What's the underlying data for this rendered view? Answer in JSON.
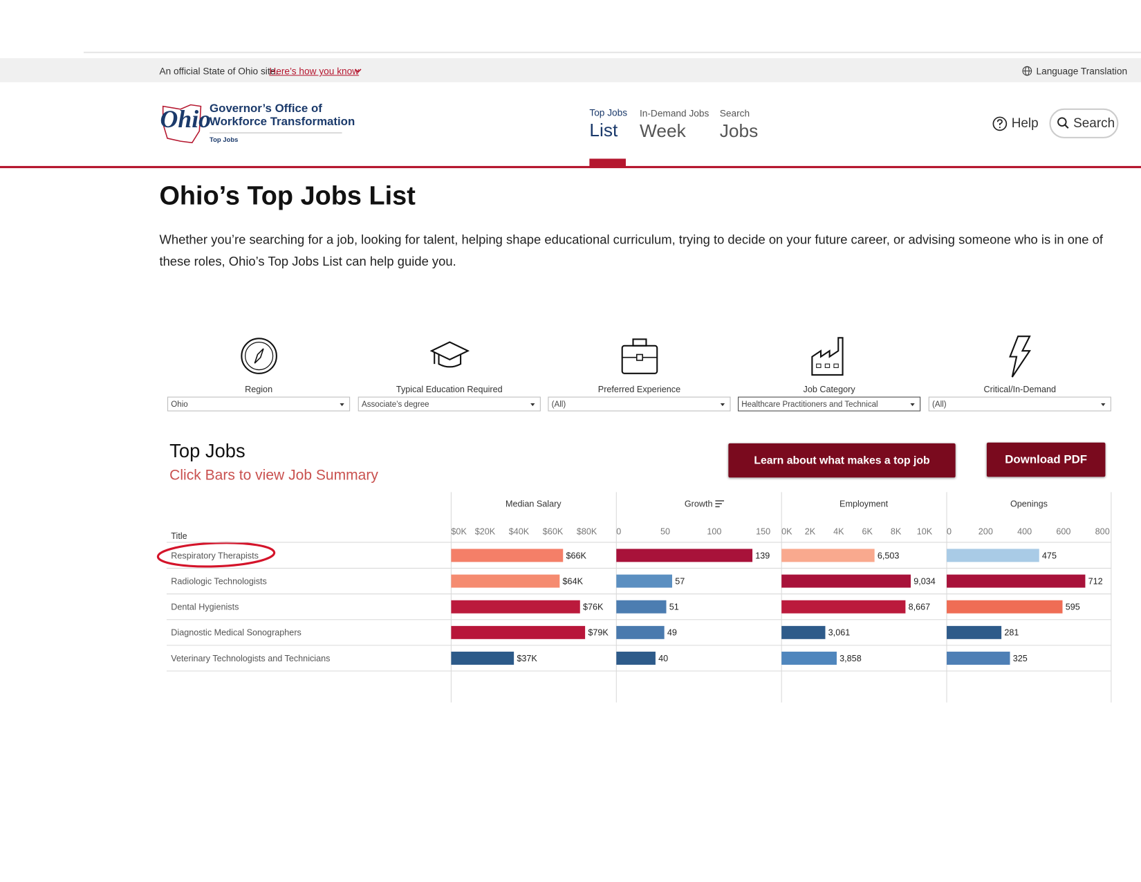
{
  "banner": {
    "text": "An official State of Ohio site.",
    "link": "Here’s how you know",
    "language": "Language Translation"
  },
  "header": {
    "logo_mark": "Ohio",
    "logo_line1": "Governor’s Office of",
    "logo_line2": "Workforce Transformation",
    "logo_sub": "Top Jobs",
    "nav": [
      {
        "small": "Top Jobs",
        "big": "List"
      },
      {
        "small": "In-Demand Jobs",
        "big": "Week"
      },
      {
        "small": "Search",
        "big": "Jobs"
      }
    ],
    "help": "Help",
    "search": "Search"
  },
  "page": {
    "title": "Ohio’s Top Jobs List",
    "intro": "Whether you’re searching for a job, looking for talent, helping shape educational curriculum, trying to decide on your future career, or advising someone who is in one of these roles, Ohio’s Top Jobs List can help guide you."
  },
  "filters": [
    {
      "label": "Region",
      "value": "Ohio"
    },
    {
      "label": "Typical Education Required",
      "value": "Associate’s degree"
    },
    {
      "label": "Preferred Experience",
      "value": "(All)"
    },
    {
      "label": "Job Category",
      "value": "Healthcare Practitioners and Technical"
    },
    {
      "label": "Critical/In-Demand",
      "value": "(All)"
    }
  ],
  "top_jobs": {
    "title": "Top Jobs",
    "subtitle": "Click Bars to view Job Summary",
    "learn_button": "Learn about what makes a top job",
    "pdf_button": "Download PDF"
  },
  "chart_data": [
    {
      "type": "bar",
      "title": "Median Salary",
      "ylabel": "Title",
      "categories": [
        "Respiratory Therapists",
        "Radiologic Technologists",
        "Dental Hygienists",
        "Diagnostic Medical Sonographers",
        "Veterinary Technologists and Technicians"
      ],
      "xlim": [
        0,
        97000
      ],
      "xticks": [
        {
          "value": 0,
          "label": "$0K"
        },
        {
          "value": 20000,
          "label": "$20K"
        },
        {
          "value": 40000,
          "label": "$40K"
        },
        {
          "value": 60000,
          "label": "$60K"
        },
        {
          "value": 80000,
          "label": "$80K"
        }
      ],
      "values": [
        66000,
        64000,
        76000,
        79000,
        37000
      ],
      "value_labels": [
        "$66K",
        "$64K",
        "$76K",
        "$79K",
        "$37K"
      ],
      "colors": [
        "#f47f68",
        "#f58b70",
        "#bb1a3c",
        "#b8163a",
        "#2c5a89"
      ]
    },
    {
      "type": "bar",
      "title": "Growth",
      "xlim": [
        0,
        168
      ],
      "xticks": [
        0,
        50,
        100,
        150
      ],
      "values": [
        139,
        57,
        51,
        49,
        40
      ],
      "colors": [
        "#a8123a",
        "#5b8fc1",
        "#4c7db1",
        "#4a7aae",
        "#2e5b8a"
      ]
    },
    {
      "type": "bar",
      "title": "Employment",
      "xlim": [
        0,
        11500
      ],
      "xticks": [
        {
          "value": 0,
          "label": "0K"
        },
        {
          "value": 2000,
          "label": "2K"
        },
        {
          "value": 4000,
          "label": "4K"
        },
        {
          "value": 6000,
          "label": "6K"
        },
        {
          "value": 8000,
          "label": "8K"
        },
        {
          "value": 10000,
          "label": "10K"
        }
      ],
      "values": [
        6503,
        9034,
        8667,
        3061,
        3858
      ],
      "value_labels": [
        "6,503",
        "9,034",
        "8,667",
        "3,061",
        "3,858"
      ],
      "colors": [
        "#f9a98e",
        "#a8123a",
        "#bb1a3c",
        "#2e5b8a",
        "#4f86bd"
      ]
    },
    {
      "type": "bar",
      "title": "Openings",
      "xlim": [
        0,
        845
      ],
      "xticks": [
        0,
        200,
        400,
        600,
        800
      ],
      "values": [
        475,
        712,
        595,
        281,
        325
      ],
      "colors": [
        "#a9cbe6",
        "#a8123a",
        "#ef6d55",
        "#2e5b8a",
        "#4e7fb5"
      ]
    }
  ]
}
